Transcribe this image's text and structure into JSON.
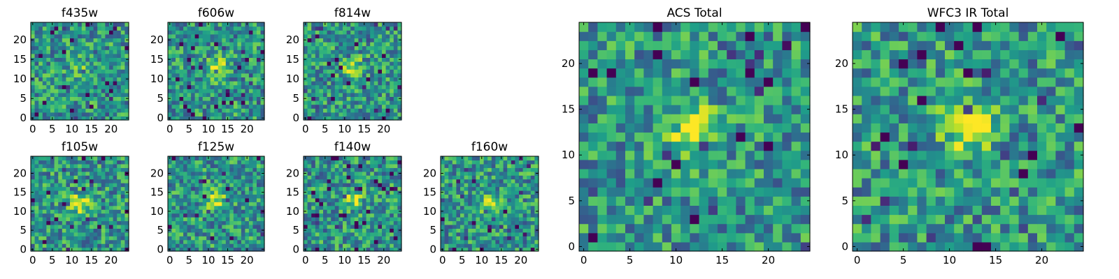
{
  "figure": {
    "description_title": ""
  },
  "chart_data": [
    {
      "type": "heatmap",
      "title": "f435w",
      "grid_size": [
        25,
        25
      ],
      "xlim": [
        -0.5,
        24.5
      ],
      "ylim": [
        -0.5,
        24.5
      ],
      "x_ticks": [
        "0",
        "5",
        "10",
        "15",
        "20"
      ],
      "y_ticks": [
        "0",
        "5",
        "10",
        "15",
        "20"
      ],
      "source_peak": [
        12,
        13
      ],
      "peak_strength": 0.15,
      "noise_seed": 11,
      "colormap": "viridis"
    },
    {
      "type": "heatmap",
      "title": "f606w",
      "grid_size": [
        25,
        25
      ],
      "xlim": [
        -0.5,
        24.5
      ],
      "ylim": [
        -0.5,
        24.5
      ],
      "x_ticks": [
        "0",
        "5",
        "10",
        "15",
        "20"
      ],
      "y_ticks": [
        "0",
        "5",
        "10",
        "15",
        "20"
      ],
      "source_peak": [
        12,
        13
      ],
      "peak_strength": 0.45,
      "noise_seed": 23,
      "colormap": "viridis"
    },
    {
      "type": "heatmap",
      "title": "f814w",
      "grid_size": [
        25,
        25
      ],
      "xlim": [
        -0.5,
        24.5
      ],
      "ylim": [
        -0.5,
        24.5
      ],
      "x_ticks": [
        "0",
        "5",
        "10",
        "15",
        "20"
      ],
      "y_ticks": [
        "0",
        "5",
        "10",
        "15",
        "20"
      ],
      "source_peak": [
        12,
        13
      ],
      "peak_strength": 0.4,
      "noise_seed": 37,
      "colormap": "viridis"
    },
    {
      "type": "heatmap",
      "title": "f105w",
      "grid_size": [
        25,
        25
      ],
      "xlim": [
        -0.5,
        24.5
      ],
      "ylim": [
        -0.5,
        24.5
      ],
      "x_ticks": [
        "0",
        "5",
        "10",
        "15",
        "20"
      ],
      "y_ticks": [
        "0",
        "5",
        "10",
        "15",
        "20"
      ],
      "source_peak": [
        12,
        12
      ],
      "peak_strength": 0.45,
      "noise_seed": 41,
      "colormap": "viridis"
    },
    {
      "type": "heatmap",
      "title": "f125w",
      "grid_size": [
        25,
        25
      ],
      "xlim": [
        -0.5,
        24.5
      ],
      "ylim": [
        -0.5,
        24.5
      ],
      "x_ticks": [
        "0",
        "5",
        "10",
        "15",
        "20"
      ],
      "y_ticks": [
        "0",
        "5",
        "10",
        "15",
        "20"
      ],
      "source_peak": [
        12,
        13
      ],
      "peak_strength": 0.4,
      "noise_seed": 53,
      "colormap": "viridis"
    },
    {
      "type": "heatmap",
      "title": "f140w",
      "grid_size": [
        25,
        25
      ],
      "xlim": [
        -0.5,
        24.5
      ],
      "ylim": [
        -0.5,
        24.5
      ],
      "x_ticks": [
        "0",
        "5",
        "10",
        "15",
        "20"
      ],
      "y_ticks": [
        "0",
        "5",
        "10",
        "15",
        "20"
      ],
      "source_peak": [
        12,
        13
      ],
      "peak_strength": 0.35,
      "noise_seed": 67,
      "colormap": "viridis"
    },
    {
      "type": "heatmap",
      "title": "f160w",
      "grid_size": [
        25,
        25
      ],
      "xlim": [
        -0.5,
        24.5
      ],
      "ylim": [
        -0.5,
        24.5
      ],
      "x_ticks": [
        "0",
        "5",
        "10",
        "15",
        "20"
      ],
      "y_ticks": [
        "0",
        "5",
        "10",
        "15",
        "20"
      ],
      "source_peak": [
        12,
        12
      ],
      "peak_strength": 0.4,
      "noise_seed": 79,
      "colormap": "viridis"
    },
    {
      "type": "heatmap",
      "title": "ACS Total",
      "grid_size": [
        25,
        25
      ],
      "xlim": [
        -0.5,
        24.5
      ],
      "ylim": [
        -0.5,
        24.5
      ],
      "x_ticks": [
        "0",
        "5",
        "10",
        "15",
        "20"
      ],
      "y_ticks": [
        "0",
        "5",
        "10",
        "15",
        "20"
      ],
      "source_peak": [
        12,
        13
      ],
      "peak_strength": 0.5,
      "noise_seed": 89,
      "colormap": "viridis"
    },
    {
      "type": "heatmap",
      "title": "WFC3 IR Total",
      "grid_size": [
        25,
        25
      ],
      "xlim": [
        -0.5,
        24.5
      ],
      "ylim": [
        -0.5,
        24.5
      ],
      "x_ticks": [
        "0",
        "5",
        "10",
        "15",
        "20"
      ],
      "y_ticks": [
        "0",
        "5",
        "10",
        "15",
        "20"
      ],
      "source_peak": [
        12,
        13
      ],
      "peak_strength": 0.55,
      "noise_seed": 97,
      "colormap": "viridis"
    }
  ]
}
